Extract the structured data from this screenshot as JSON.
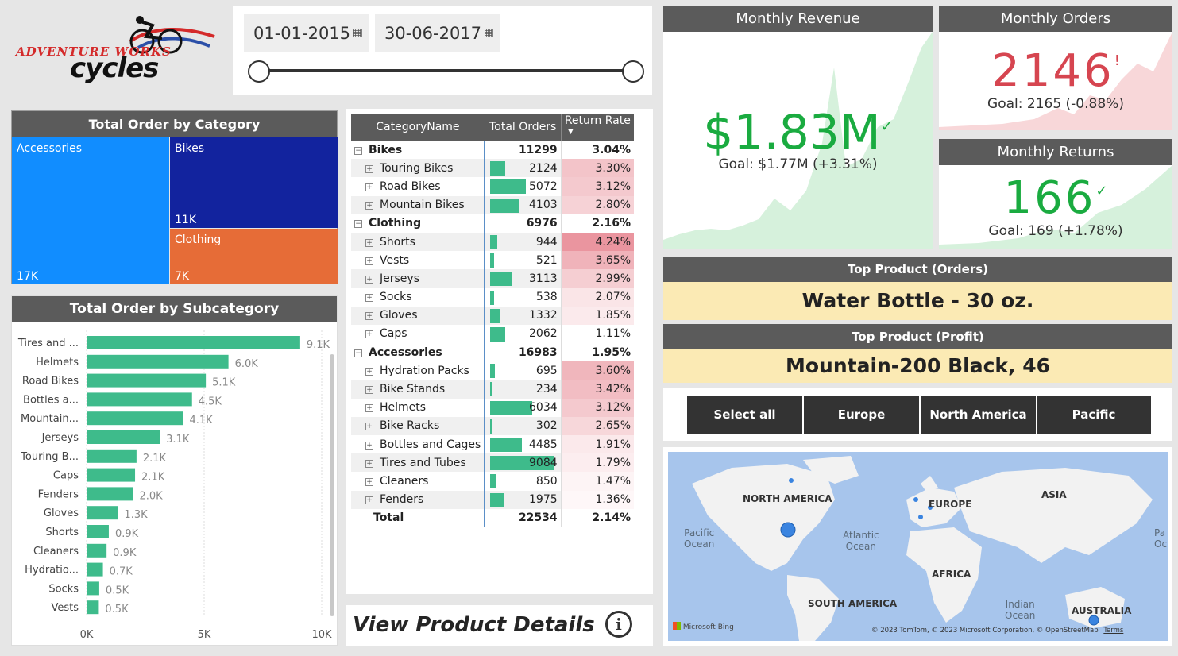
{
  "logo": {
    "line1": "ADVENTURE WORKS",
    "line2": "cycles"
  },
  "date_slicer": {
    "start": "01-01-2015",
    "end": "30-06-2017"
  },
  "treemap": {
    "title": "Total Order by Category",
    "cells": [
      {
        "name": "Accessories",
        "value": "17K",
        "color": "#118dff"
      },
      {
        "name": "Bikes",
        "value": "11K",
        "color": "#12239e"
      },
      {
        "name": "Clothing",
        "value": "7K",
        "color": "#e66c37"
      }
    ]
  },
  "subcategory_chart": {
    "title": "Total Order by Subcategory",
    "color": "#3ebb8b"
  },
  "chart_data": {
    "type": "bar",
    "orientation": "horizontal",
    "title": "Total Order by Subcategory",
    "categories": [
      "Tires and ...",
      "Helmets",
      "Road Bikes",
      "Bottles a...",
      "Mountain...",
      "Jerseys",
      "Touring B...",
      "Caps",
      "Fenders",
      "Gloves",
      "Shorts",
      "Cleaners",
      "Hydratio...",
      "Socks",
      "Vests"
    ],
    "values": [
      9084,
      6034,
      5072,
      4485,
      4103,
      3113,
      2124,
      2062,
      1975,
      1332,
      944,
      850,
      695,
      538,
      521
    ],
    "data_labels": [
      "9.1K",
      "6.0K",
      "5.1K",
      "4.5K",
      "4.1K",
      "3.1K",
      "2.1K",
      "2.1K",
      "2.0K",
      "1.3K",
      "0.9K",
      "0.9K",
      "0.7K",
      "0.5K",
      "0.5K"
    ],
    "xlim": [
      0,
      10000
    ],
    "xticks": [
      "0K",
      "5K",
      "10K"
    ],
    "grid": true
  },
  "matrix": {
    "headers": [
      "CategoryName",
      "Total Orders",
      "Return Rate"
    ],
    "max_orders": 9084,
    "rows": [
      {
        "level": 0,
        "name": "Bikes",
        "orders": 11299,
        "orders_label": "11299",
        "rate": "3.04%"
      },
      {
        "level": 1,
        "name": "Touring Bikes",
        "orders": 2124,
        "orders_label": "2124",
        "rate": "3.30%",
        "rate_bg": "#f3c4c9"
      },
      {
        "level": 1,
        "name": "Road Bikes",
        "orders": 5072,
        "orders_label": "5072",
        "rate": "3.12%",
        "rate_bg": "#f4c9ce"
      },
      {
        "level": 1,
        "name": "Mountain Bikes",
        "orders": 4103,
        "orders_label": "4103",
        "rate": "2.80%",
        "rate_bg": "#f6d2d6"
      },
      {
        "level": 0,
        "name": "Clothing",
        "orders": 6976,
        "orders_label": "6976",
        "rate": "2.16%"
      },
      {
        "level": 1,
        "name": "Shorts",
        "orders": 944,
        "orders_label": "944",
        "rate": "4.24%",
        "rate_bg": "#ea959f"
      },
      {
        "level": 1,
        "name": "Vests",
        "orders": 521,
        "orders_label": "521",
        "rate": "3.65%",
        "rate_bg": "#f0b3ba"
      },
      {
        "level": 1,
        "name": "Jerseys",
        "orders": 3113,
        "orders_label": "3113",
        "rate": "2.99%",
        "rate_bg": "#f5ced2"
      },
      {
        "level": 1,
        "name": "Socks",
        "orders": 538,
        "orders_label": "538",
        "rate": "2.07%",
        "rate_bg": "#fae5e7"
      },
      {
        "level": 1,
        "name": "Gloves",
        "orders": 1332,
        "orders_label": "1332",
        "rate": "1.85%",
        "rate_bg": "#fbeaec"
      },
      {
        "level": 1,
        "name": "Caps",
        "orders": 2062,
        "orders_label": "2062",
        "rate": "1.11%",
        "rate_bg": "#ffffff"
      },
      {
        "level": 0,
        "name": "Accessories",
        "orders": 16983,
        "orders_label": "16983",
        "rate": "1.95%"
      },
      {
        "level": 1,
        "name": "Hydration Packs",
        "orders": 695,
        "orders_label": "695",
        "rate": "3.60%",
        "rate_bg": "#f0b6bc"
      },
      {
        "level": 1,
        "name": "Bike Stands",
        "orders": 234,
        "orders_label": "234",
        "rate": "3.42%",
        "rate_bg": "#f2bdc3"
      },
      {
        "level": 1,
        "name": "Helmets",
        "orders": 6034,
        "orders_label": "6034",
        "rate": "3.12%",
        "rate_bg": "#f4c9ce"
      },
      {
        "level": 1,
        "name": "Bike Racks",
        "orders": 302,
        "orders_label": "302",
        "rate": "2.65%",
        "rate_bg": "#f7d7da"
      },
      {
        "level": 1,
        "name": "Bottles and Cages",
        "orders": 4485,
        "orders_label": "4485",
        "rate": "1.91%",
        "rate_bg": "#fbe9eb"
      },
      {
        "level": 1,
        "name": "Tires and Tubes",
        "orders": 9084,
        "orders_label": "9084",
        "rate": "1.79%",
        "rate_bg": "#fcedef"
      },
      {
        "level": 1,
        "name": "Cleaners",
        "orders": 850,
        "orders_label": "850",
        "rate": "1.47%",
        "rate_bg": "#fdf4f5"
      },
      {
        "level": 1,
        "name": "Fenders",
        "orders": 1975,
        "orders_label": "1975",
        "rate": "1.36%",
        "rate_bg": "#fef7f8"
      },
      {
        "level": 2,
        "name": "Total",
        "orders": 22534,
        "orders_label": "22534",
        "rate": "2.14%"
      }
    ]
  },
  "view_details": {
    "label": "View Product Details",
    "icon": "info-icon"
  },
  "kpis": {
    "revenue": {
      "title": "Monthly Revenue",
      "value": "$1.83M",
      "goal": "Goal: $1.77M (+3.31%)",
      "status": "up",
      "color": "#1aab40"
    },
    "orders": {
      "title": "Monthly Orders",
      "value": "2146",
      "goal": "Goal: 2165 (-0.88%)",
      "status": "down",
      "color": "#d64550"
    },
    "returns": {
      "title": "Monthly Returns",
      "value": "166",
      "goal": "Goal: 169 (+1.78%)",
      "status": "up",
      "color": "#1aab40"
    }
  },
  "top_products": {
    "orders_title": "Top Product (Orders)",
    "orders_value": "Water Bottle - 30 oz.",
    "profit_title": "Top Product (Profit)",
    "profit_value": "Mountain-200 Black, 46"
  },
  "regions": {
    "buttons": [
      "Select all",
      "Europe",
      "North America",
      "Pacific"
    ]
  },
  "map": {
    "continents": [
      "NORTH AMERICA",
      "EUROPE",
      "ASIA",
      "AFRICA",
      "SOUTH AMERICA",
      "AUSTRALIA"
    ],
    "oceans": {
      "pacific": "Pacific\nOcean",
      "atlantic": "Atlantic\nOcean",
      "indian": "Indian\nOcean",
      "pacific_right": "Pa\nOc"
    },
    "brand": "Microsoft Bing",
    "copyright": "© 2023 TomTom, © 2023 Microsoft Corporation, © OpenStreetMap",
    "terms": "Terms"
  }
}
